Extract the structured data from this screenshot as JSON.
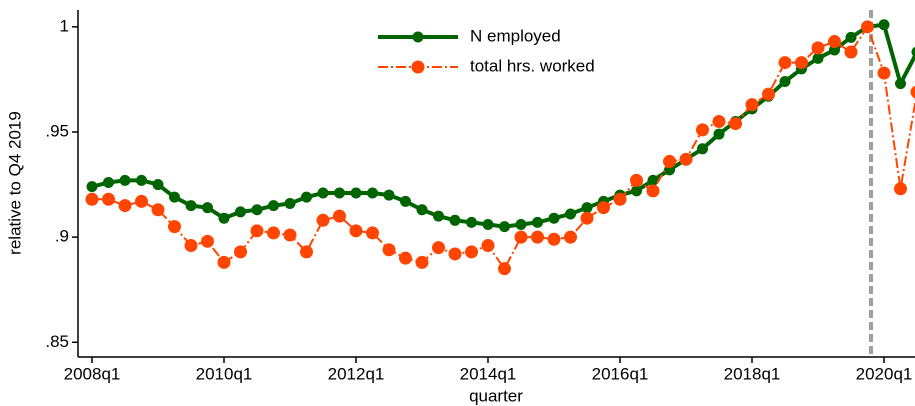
{
  "chart_data": {
    "type": "line",
    "x_label": "quarter",
    "y_label": "relative to Q4 2019",
    "categories": [
      "2008q1",
      null,
      null,
      null,
      null,
      null,
      null,
      null,
      "2010q1",
      null,
      null,
      null,
      null,
      null,
      null,
      null,
      "2012q1",
      null,
      null,
      null,
      null,
      null,
      null,
      null,
      "2014q1",
      null,
      null,
      null,
      null,
      null,
      null,
      null,
      "2016q1",
      null,
      null,
      null,
      null,
      null,
      null,
      null,
      "2018q1",
      null,
      null,
      null,
      null,
      null,
      null,
      null,
      "2020q1",
      null,
      null
    ],
    "series": [
      {
        "name": "N employed",
        "color": "#006400",
        "values": [
          0.924,
          0.926,
          0.927,
          0.927,
          0.925,
          0.919,
          0.915,
          0.914,
          0.909,
          0.912,
          0.913,
          0.915,
          0.916,
          0.919,
          0.921,
          0.921,
          0.921,
          0.921,
          0.92,
          0.917,
          0.913,
          0.91,
          0.908,
          0.907,
          0.906,
          0.905,
          0.906,
          0.907,
          0.909,
          0.911,
          0.914,
          0.917,
          0.92,
          0.922,
          0.927,
          0.932,
          0.937,
          0.942,
          0.949,
          0.955,
          0.961,
          0.967,
          0.974,
          0.98,
          0.985,
          0.989,
          0.995,
          1.0,
          1.001,
          0.973,
          0.988
        ]
      },
      {
        "name": "total hrs. worked",
        "color": "#ff4500",
        "values": [
          0.918,
          0.918,
          0.915,
          0.917,
          0.913,
          0.905,
          0.896,
          0.898,
          0.888,
          0.893,
          0.903,
          0.902,
          0.901,
          0.893,
          0.908,
          0.91,
          0.903,
          0.902,
          0.894,
          0.89,
          0.888,
          0.895,
          0.892,
          0.893,
          0.896,
          0.885,
          0.9,
          0.9,
          0.899,
          0.9,
          0.909,
          0.914,
          0.918,
          0.927,
          0.922,
          0.936,
          0.937,
          0.951,
          0.955,
          0.954,
          0.963,
          0.968,
          0.983,
          0.983,
          0.99,
          0.993,
          0.988,
          1.0,
          0.978,
          0.923,
          0.969
        ]
      }
    ],
    "ylim": [
      0.843,
      1.008
    ],
    "yticks": [
      {
        "value": 0.85,
        "label": ".85"
      },
      {
        "value": 0.9,
        "label": ".9"
      },
      {
        "value": 0.95,
        "label": ".95"
      },
      1
    ],
    "legend": "top"
  }
}
